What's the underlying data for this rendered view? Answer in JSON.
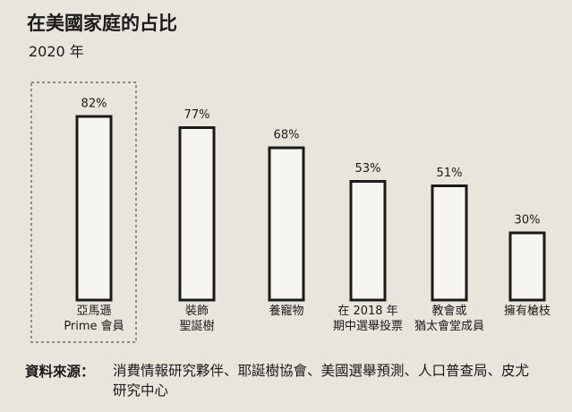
{
  "chart_data": {
    "type": "bar",
    "title": "在美國家庭的占比",
    "subtitle": "2020 年",
    "categories": [
      "亞馬遜\nPrime 會員",
      "裝飾\n聖誕樹",
      "養寵物",
      "在 2018 年\n期中選舉投票",
      "教會或\n猶太會堂成員",
      "擁有槍枝"
    ],
    "values": [
      82,
      77,
      68,
      53,
      51,
      30
    ],
    "value_labels": [
      "82%",
      "77%",
      "68%",
      "53%",
      "51%",
      "30%"
    ],
    "color": "#1a1a1a",
    "source_label": "資料來源：",
    "source": "消費情報研究夥伴、耶誕樹協會、美國選舉預測、人口普查局、皮尤研究中心"
  }
}
